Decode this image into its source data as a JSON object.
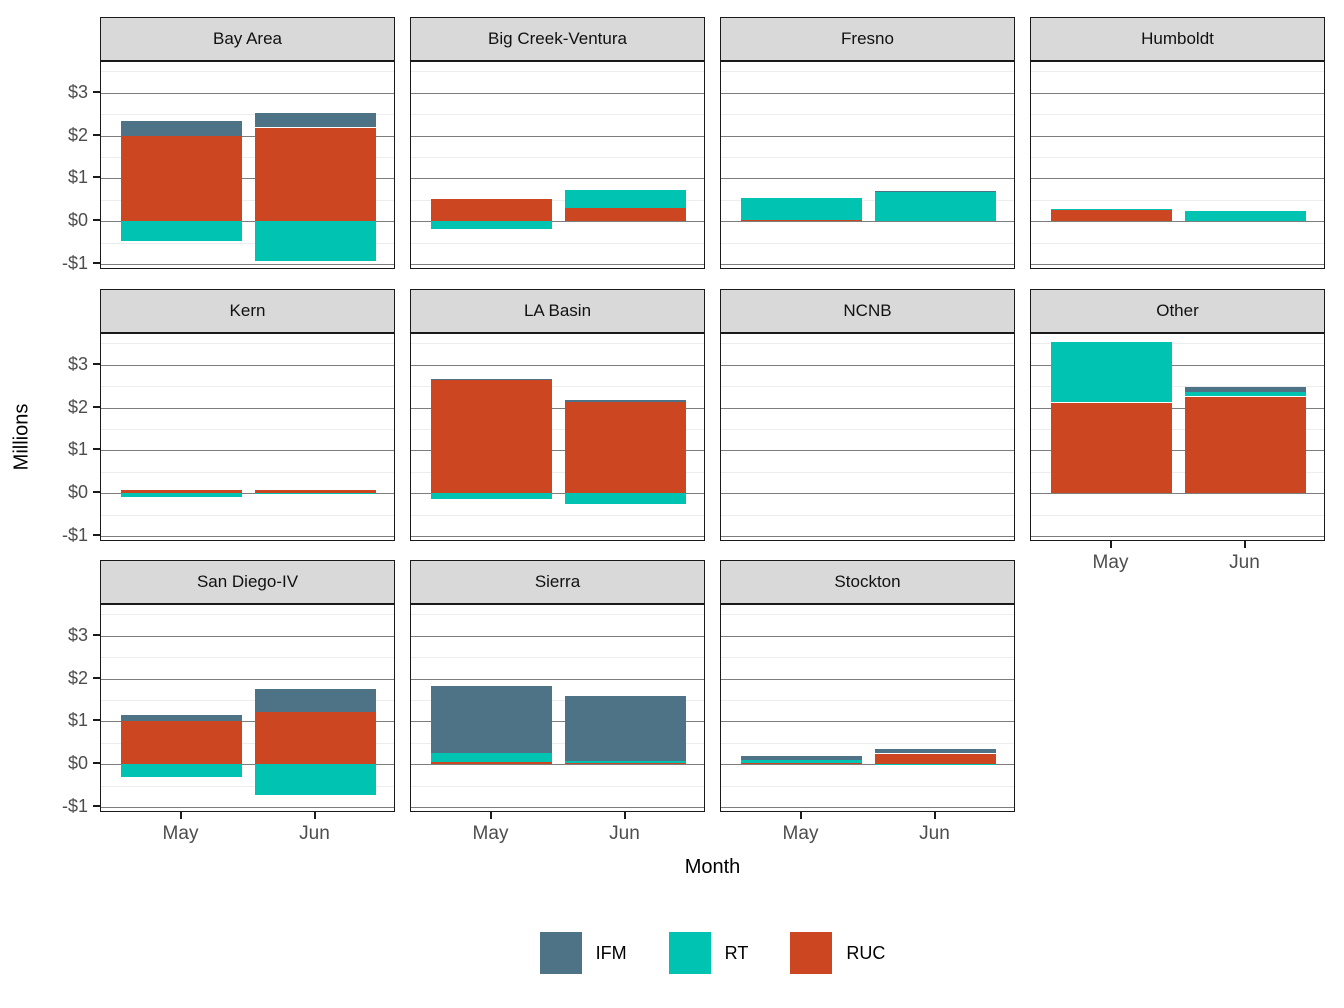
{
  "colors": {
    "background": "#ffffff",
    "panel_border": "#1a1a1a",
    "strip_bg": "#d9d9d9",
    "major_grid": "#7d7d7d",
    "minor_grid": "#ededed",
    "axis_text": "#4d4d4d",
    "title_text": "#000000"
  },
  "chart_data": {
    "type": "bar",
    "stacked": true,
    "xlabel": "Month",
    "ylabel": "Millions",
    "categories": [
      "May",
      "Jun"
    ],
    "series": [
      {
        "name": "IFM",
        "color": "#4e7286"
      },
      {
        "name": "RT",
        "color": "#00c4b1"
      },
      {
        "name": "RUC",
        "color": "#cc4621"
      }
    ],
    "stack_order_bottom_to_top": [
      "RUC",
      "RT",
      "IFM"
    ],
    "legend_position": "bottom",
    "ylim": [
      -1.14,
      3.72
    ],
    "y_ticks": [
      {
        "label": "$3",
        "value": 3
      },
      {
        "label": "$2",
        "value": 2
      },
      {
        "label": "$1",
        "value": 1
      },
      {
        "label": "$0",
        "value": 0
      },
      {
        "label": "-$1",
        "value": -1
      }
    ],
    "y_minor_gridlines": [
      3.5,
      2.5,
      1.5,
      0.5,
      -0.5
    ],
    "facets": [
      {
        "name": "Bay Area",
        "values": {
          "May": {
            "IFM": 0.35,
            "RT": -0.47,
            "RUC": 2.0
          },
          "Jun": {
            "IFM": 0.33,
            "RT": -0.93,
            "RUC": 2.19
          }
        }
      },
      {
        "name": "Big Creek-Ventura",
        "values": {
          "May": {
            "IFM": 0,
            "RT": -0.19,
            "RUC": 0.51
          },
          "Jun": {
            "IFM": 0,
            "RT": 0.42,
            "RUC": 0.3
          }
        }
      },
      {
        "name": "Fresno",
        "values": {
          "May": {
            "IFM": 0,
            "RT": 0.52,
            "RUC": 0.03
          },
          "Jun": {
            "IFM": 0.03,
            "RT": 0.68,
            "RUC": 0
          }
        }
      },
      {
        "name": "Humboldt",
        "values": {
          "May": {
            "IFM": 0,
            "RT": 0.02,
            "RUC": 0.27
          },
          "Jun": {
            "IFM": 0,
            "RT": 0.25,
            "RUC": 0
          }
        }
      },
      {
        "name": "Kern",
        "values": {
          "May": {
            "IFM": 0,
            "RT": -0.09,
            "RUC": 0.08
          },
          "Jun": {
            "IFM": 0,
            "RT": -0.03,
            "RUC": 0.07
          }
        }
      },
      {
        "name": "LA Basin",
        "values": {
          "May": {
            "IFM": 0.02,
            "RT": -0.14,
            "RUC": 2.64
          },
          "Jun": {
            "IFM": 0.03,
            "RT": -0.26,
            "RUC": 2.14
          }
        }
      },
      {
        "name": "NCNB",
        "values": {
          "May": {
            "IFM": 0,
            "RT": 0,
            "RUC": 0
          },
          "Jun": {
            "IFM": 0,
            "RT": 0,
            "RUC": 0
          }
        }
      },
      {
        "name": "Other",
        "values": {
          "May": {
            "IFM": 0,
            "RT": 1.41,
            "RUC": 2.12
          },
          "Jun": {
            "IFM": 0.13,
            "RT": 0.1,
            "RUC": 2.26
          }
        }
      },
      {
        "name": "San Diego-IV",
        "values": {
          "May": {
            "IFM": 0.15,
            "RT": -0.3,
            "RUC": 1.0
          },
          "Jun": {
            "IFM": 0.55,
            "RT": -0.72,
            "RUC": 1.21
          }
        }
      },
      {
        "name": "Sierra",
        "values": {
          "May": {
            "IFM": 1.57,
            "RT": 0.21,
            "RUC": 0.05
          },
          "Jun": {
            "IFM": 1.52,
            "RT": 0.05,
            "RUC": 0.02
          }
        }
      },
      {
        "name": "Stockton",
        "values": {
          "May": {
            "IFM": 0.09,
            "RT": 0.07,
            "RUC": 0.03
          },
          "Jun": {
            "IFM": 0.11,
            "RT": -0.02,
            "RUC": 0.25
          }
        }
      }
    ]
  }
}
